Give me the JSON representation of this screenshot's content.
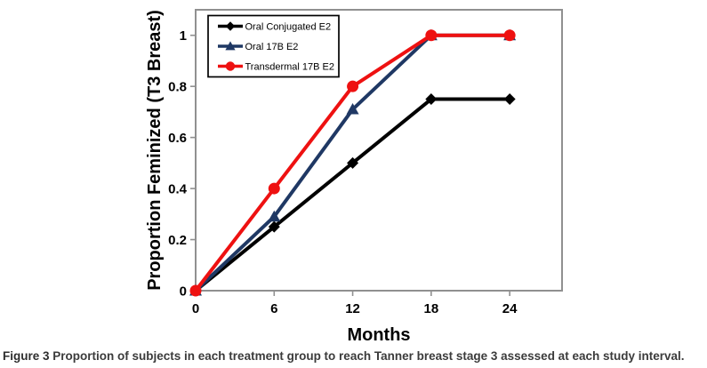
{
  "figure": {
    "caption_label": "Figure 3",
    "caption_text": "Proportion of subjects in each treatment group to reach Tanner breast stage 3 assessed at each study interval."
  },
  "chart_data": {
    "type": "line",
    "title": "",
    "xlabel": "Months",
    "ylabel": "Proportion Feminized (T3 Breast)",
    "x": [
      0,
      6,
      12,
      18,
      24
    ],
    "series": [
      {
        "name": "Oral Conjugated E2",
        "marker": "diamond",
        "color": "#000000",
        "values": [
          0,
          0.25,
          0.5,
          0.75,
          0.75
        ]
      },
      {
        "name": "Oral 17B E2",
        "marker": "triangle",
        "color": "#1f3864",
        "values": [
          0,
          0.29,
          0.71,
          1,
          1
        ]
      },
      {
        "name": "Transdermal 17B E2",
        "marker": "circle",
        "color": "#ee1111",
        "values": [
          0,
          0.4,
          0.8,
          1,
          1
        ]
      }
    ],
    "x_ticks": [
      "0",
      "6",
      "12",
      "18",
      "24"
    ],
    "y_ticks": [
      "0",
      "0.2",
      "0.4",
      "0.6",
      "0.8",
      "1"
    ],
    "xlim": [
      0,
      28
    ],
    "ylim": [
      0,
      1.1
    ],
    "grid": false,
    "legend_position": "top-left",
    "frame_color": "#909090"
  }
}
